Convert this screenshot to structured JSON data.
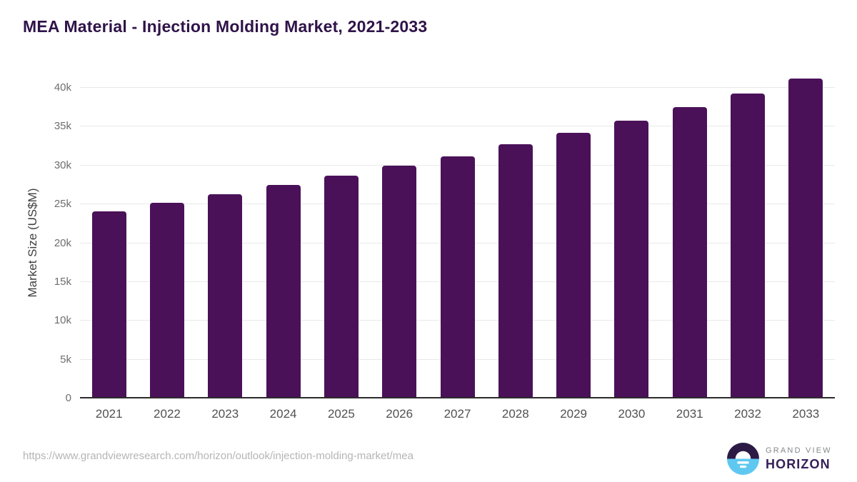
{
  "chart_data": {
    "type": "bar",
    "title": "MEA Material - Injection Molding Market, 2021-2033",
    "xlabel": "",
    "ylabel": "Market Size (US$M)",
    "categories": [
      "2021",
      "2022",
      "2023",
      "2024",
      "2025",
      "2026",
      "2027",
      "2028",
      "2029",
      "2030",
      "2031",
      "2032",
      "2033"
    ],
    "values": [
      24000,
      25100,
      26200,
      27400,
      28600,
      29900,
      31100,
      32600,
      34100,
      35700,
      37400,
      39200,
      41100
    ],
    "ylim": [
      0,
      42000
    ],
    "yticks": [
      0,
      5000,
      10000,
      15000,
      20000,
      25000,
      30000,
      35000,
      40000
    ],
    "ytick_labels": [
      "0",
      "5k",
      "10k",
      "15k",
      "20k",
      "25k",
      "30k",
      "35k",
      "40k"
    ],
    "grid": true,
    "legend": false,
    "bar_color": "#4A1159"
  },
  "footer": {
    "source_url": "https://www.grandviewresearch.com/horizon/outlook/injection-molding-market/mea",
    "logo": {
      "top_text": "GRAND VIEW",
      "bottom_text": "HORIZON"
    }
  },
  "colors": {
    "bar": "#4A1159",
    "title": "#2F1349",
    "axis_line": "#2B2B2B",
    "gridline": "#E9E9E9",
    "tick_label": "#6E6E6E",
    "x_label": "#515151",
    "y_axis_title": "#404040",
    "source_url": "#B5B5B5",
    "logo_purple": "#2C1A45",
    "logo_blue": "#5FC8F0",
    "logo_gray_text": "#85878A",
    "logo_horizon_text": "#342057"
  }
}
